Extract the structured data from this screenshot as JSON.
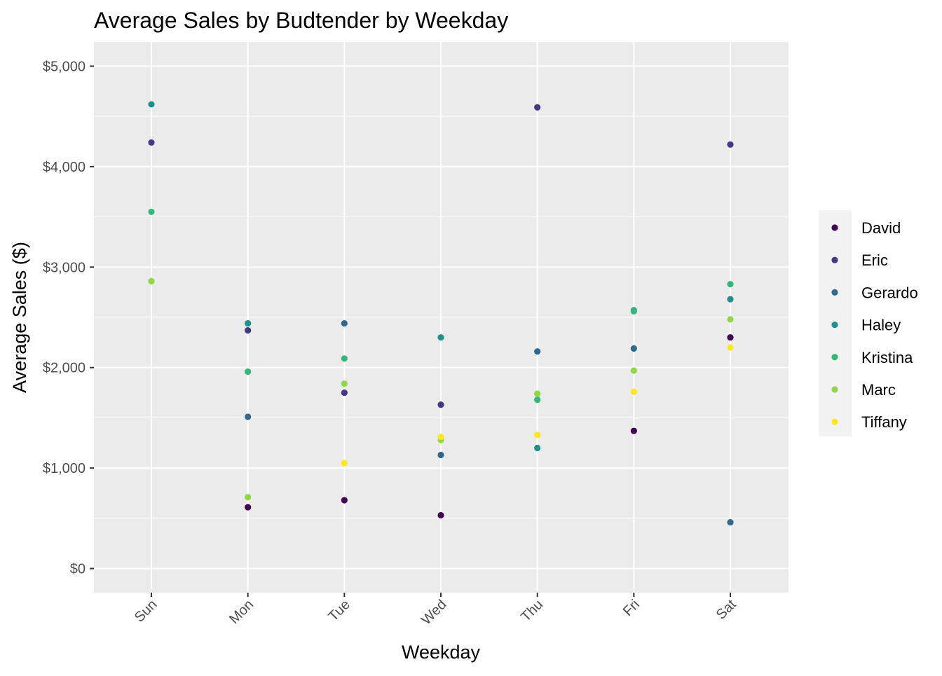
{
  "chart_data": {
    "type": "scatter",
    "title": "Average Sales by Budtender by Weekday",
    "xlabel": "Weekday",
    "ylabel": "Average Sales ($)",
    "categories": [
      "Sun",
      "Mon",
      "Tue",
      "Wed",
      "Thu",
      "Fri",
      "Sat"
    ],
    "ylim": [
      -240,
      5240
    ],
    "y_ticks": [
      0,
      1000,
      2000,
      3000,
      4000,
      5000
    ],
    "y_tick_labels": [
      "$0",
      "$1,000",
      "$2,000",
      "$3,000",
      "$4,000",
      "$5,000"
    ],
    "grid": true,
    "legend_position": "right",
    "series": [
      {
        "name": "David",
        "color": "#440154",
        "values": [
          null,
          610,
          680,
          530,
          null,
          1370,
          2300
        ]
      },
      {
        "name": "Eric",
        "color": "#443A83",
        "values": [
          4240,
          2370,
          1750,
          1630,
          4590,
          null,
          4220
        ]
      },
      {
        "name": "Gerardo",
        "color": "#31688E",
        "values": [
          null,
          1510,
          2440,
          1130,
          2160,
          2190,
          460
        ]
      },
      {
        "name": "Haley",
        "color": "#21908C",
        "values": [
          4620,
          2440,
          null,
          2300,
          1200,
          2570,
          2680
        ]
      },
      {
        "name": "Kristina",
        "color": "#35B779",
        "values": [
          3550,
          1960,
          2090,
          null,
          1680,
          2560,
          2830
        ]
      },
      {
        "name": "Marc",
        "color": "#8FD744",
        "values": [
          2860,
          710,
          1840,
          1280,
          1740,
          1970,
          2480
        ]
      },
      {
        "name": "Tiffany",
        "color": "#FDE725",
        "values": [
          null,
          null,
          1050,
          1310,
          1330,
          1760,
          2200
        ]
      }
    ]
  }
}
